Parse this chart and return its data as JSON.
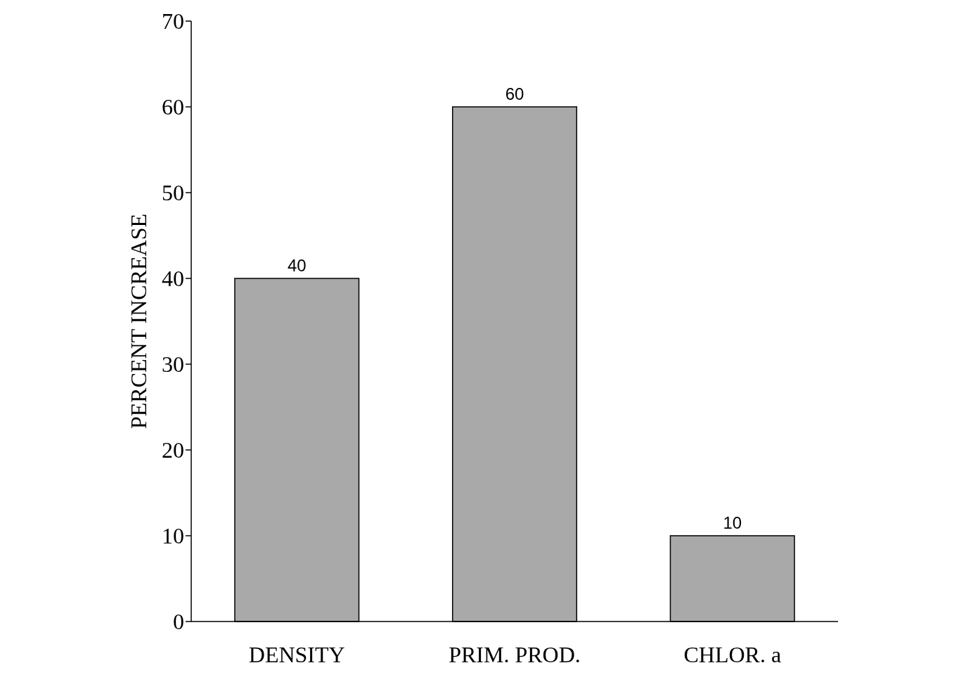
{
  "chart_data": {
    "type": "bar",
    "ylabel": "PERCENT INCREASE",
    "categories": [
      "DENSITY",
      "PRIM. PROD.",
      "CHLOR. a"
    ],
    "values": [
      40,
      60,
      10
    ],
    "color": "#a9a9a9",
    "ylim": [
      0,
      70
    ],
    "yticks": [
      0,
      10,
      20,
      30,
      40,
      50,
      60,
      70
    ],
    "data_labels": true,
    "grid": false
  }
}
